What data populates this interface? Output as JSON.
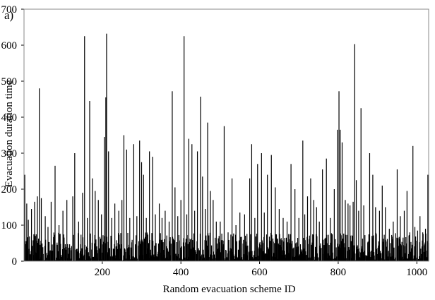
{
  "panel_label": "a)",
  "chart_data": {
    "type": "bar",
    "title": "",
    "xlabel": "Random evacuation scheme ID",
    "ylabel": "Evacuation duration time",
    "xlim": [
      1,
      1030
    ],
    "ylim": [
      0,
      700
    ],
    "xticks": [
      200,
      400,
      600,
      800,
      1000
    ],
    "yticks": [
      0,
      100,
      200,
      300,
      400,
      500,
      600,
      700
    ],
    "grid": false,
    "legend": "none",
    "bar_color": "#000000",
    "noise_range": [
      0,
      80
    ],
    "values_note": "",
    "peaks": [
      {
        "x": 3,
        "y": 240
      },
      {
        "x": 8,
        "y": 160
      },
      {
        "x": 12,
        "y": 115
      },
      {
        "x": 20,
        "y": 145
      },
      {
        "x": 28,
        "y": 165
      },
      {
        "x": 35,
        "y": 180
      },
      {
        "x": 40,
        "y": 480
      },
      {
        "x": 45,
        "y": 175
      },
      {
        "x": 55,
        "y": 125
      },
      {
        "x": 62,
        "y": 95
      },
      {
        "x": 70,
        "y": 165
      },
      {
        "x": 80,
        "y": 265
      },
      {
        "x": 90,
        "y": 100
      },
      {
        "x": 100,
        "y": 140
      },
      {
        "x": 110,
        "y": 170
      },
      {
        "x": 125,
        "y": 180
      },
      {
        "x": 130,
        "y": 300
      },
      {
        "x": 140,
        "y": 110
      },
      {
        "x": 150,
        "y": 190
      },
      {
        "x": 155,
        "y": 625
      },
      {
        "x": 162,
        "y": 120
      },
      {
        "x": 168,
        "y": 445
      },
      {
        "x": 175,
        "y": 230
      },
      {
        "x": 182,
        "y": 195
      },
      {
        "x": 190,
        "y": 170
      },
      {
        "x": 198,
        "y": 130
      },
      {
        "x": 205,
        "y": 345
      },
      {
        "x": 209,
        "y": 455
      },
      {
        "x": 211,
        "y": 632
      },
      {
        "x": 216,
        "y": 305
      },
      {
        "x": 224,
        "y": 120
      },
      {
        "x": 232,
        "y": 160
      },
      {
        "x": 242,
        "y": 140
      },
      {
        "x": 250,
        "y": 170
      },
      {
        "x": 255,
        "y": 350
      },
      {
        "x": 262,
        "y": 310
      },
      {
        "x": 270,
        "y": 120
      },
      {
        "x": 280,
        "y": 325
      },
      {
        "x": 288,
        "y": 125
      },
      {
        "x": 295,
        "y": 335
      },
      {
        "x": 300,
        "y": 275
      },
      {
        "x": 305,
        "y": 240
      },
      {
        "x": 312,
        "y": 120
      },
      {
        "x": 320,
        "y": 305
      },
      {
        "x": 328,
        "y": 290
      },
      {
        "x": 335,
        "y": 130
      },
      {
        "x": 345,
        "y": 160
      },
      {
        "x": 352,
        "y": 120
      },
      {
        "x": 360,
        "y": 140
      },
      {
        "x": 370,
        "y": 110
      },
      {
        "x": 378,
        "y": 472
      },
      {
        "x": 385,
        "y": 205
      },
      {
        "x": 392,
        "y": 125
      },
      {
        "x": 400,
        "y": 170
      },
      {
        "x": 408,
        "y": 625
      },
      {
        "x": 415,
        "y": 130
      },
      {
        "x": 420,
        "y": 340
      },
      {
        "x": 428,
        "y": 325
      },
      {
        "x": 435,
        "y": 140
      },
      {
        "x": 442,
        "y": 305
      },
      {
        "x": 450,
        "y": 457
      },
      {
        "x": 455,
        "y": 235
      },
      {
        "x": 462,
        "y": 145
      },
      {
        "x": 468,
        "y": 385
      },
      {
        "x": 475,
        "y": 195
      },
      {
        "x": 482,
        "y": 170
      },
      {
        "x": 490,
        "y": 110
      },
      {
        "x": 500,
        "y": 110
      },
      {
        "x": 510,
        "y": 375
      },
      {
        "x": 520,
        "y": 80
      },
      {
        "x": 530,
        "y": 230
      },
      {
        "x": 540,
        "y": 100
      },
      {
        "x": 550,
        "y": 135
      },
      {
        "x": 562,
        "y": 130
      },
      {
        "x": 575,
        "y": 230
      },
      {
        "x": 580,
        "y": 325
      },
      {
        "x": 588,
        "y": 120
      },
      {
        "x": 595,
        "y": 270
      },
      {
        "x": 605,
        "y": 300
      },
      {
        "x": 612,
        "y": 135
      },
      {
        "x": 620,
        "y": 240
      },
      {
        "x": 630,
        "y": 295
      },
      {
        "x": 640,
        "y": 205
      },
      {
        "x": 650,
        "y": 145
      },
      {
        "x": 660,
        "y": 120
      },
      {
        "x": 670,
        "y": 110
      },
      {
        "x": 680,
        "y": 270
      },
      {
        "x": 690,
        "y": 200
      },
      {
        "x": 700,
        "y": 120
      },
      {
        "x": 710,
        "y": 335
      },
      {
        "x": 715,
        "y": 130
      },
      {
        "x": 722,
        "y": 180
      },
      {
        "x": 730,
        "y": 230
      },
      {
        "x": 738,
        "y": 170
      },
      {
        "x": 745,
        "y": 150
      },
      {
        "x": 752,
        "y": 110
      },
      {
        "x": 760,
        "y": 255
      },
      {
        "x": 770,
        "y": 285
      },
      {
        "x": 780,
        "y": 120
      },
      {
        "x": 790,
        "y": 200
      },
      {
        "x": 798,
        "y": 365
      },
      {
        "x": 802,
        "y": 472
      },
      {
        "x": 805,
        "y": 365
      },
      {
        "x": 810,
        "y": 330
      },
      {
        "x": 818,
        "y": 170
      },
      {
        "x": 825,
        "y": 160
      },
      {
        "x": 830,
        "y": 155
      },
      {
        "x": 838,
        "y": 165
      },
      {
        "x": 842,
        "y": 603
      },
      {
        "x": 846,
        "y": 225
      },
      {
        "x": 852,
        "y": 140
      },
      {
        "x": 858,
        "y": 425
      },
      {
        "x": 865,
        "y": 155
      },
      {
        "x": 880,
        "y": 300
      },
      {
        "x": 888,
        "y": 240
      },
      {
        "x": 895,
        "y": 150
      },
      {
        "x": 905,
        "y": 140
      },
      {
        "x": 912,
        "y": 210
      },
      {
        "x": 920,
        "y": 150
      },
      {
        "x": 930,
        "y": 90
      },
      {
        "x": 940,
        "y": 110
      },
      {
        "x": 950,
        "y": 255
      },
      {
        "x": 958,
        "y": 125
      },
      {
        "x": 968,
        "y": 140
      },
      {
        "x": 975,
        "y": 195
      },
      {
        "x": 982,
        "y": 80
      },
      {
        "x": 990,
        "y": 320
      },
      {
        "x": 995,
        "y": 95
      },
      {
        "x": 1002,
        "y": 85
      },
      {
        "x": 1008,
        "y": 125
      },
      {
        "x": 1015,
        "y": 80
      },
      {
        "x": 1022,
        "y": 90
      },
      {
        "x": 1028,
        "y": 240
      }
    ]
  }
}
